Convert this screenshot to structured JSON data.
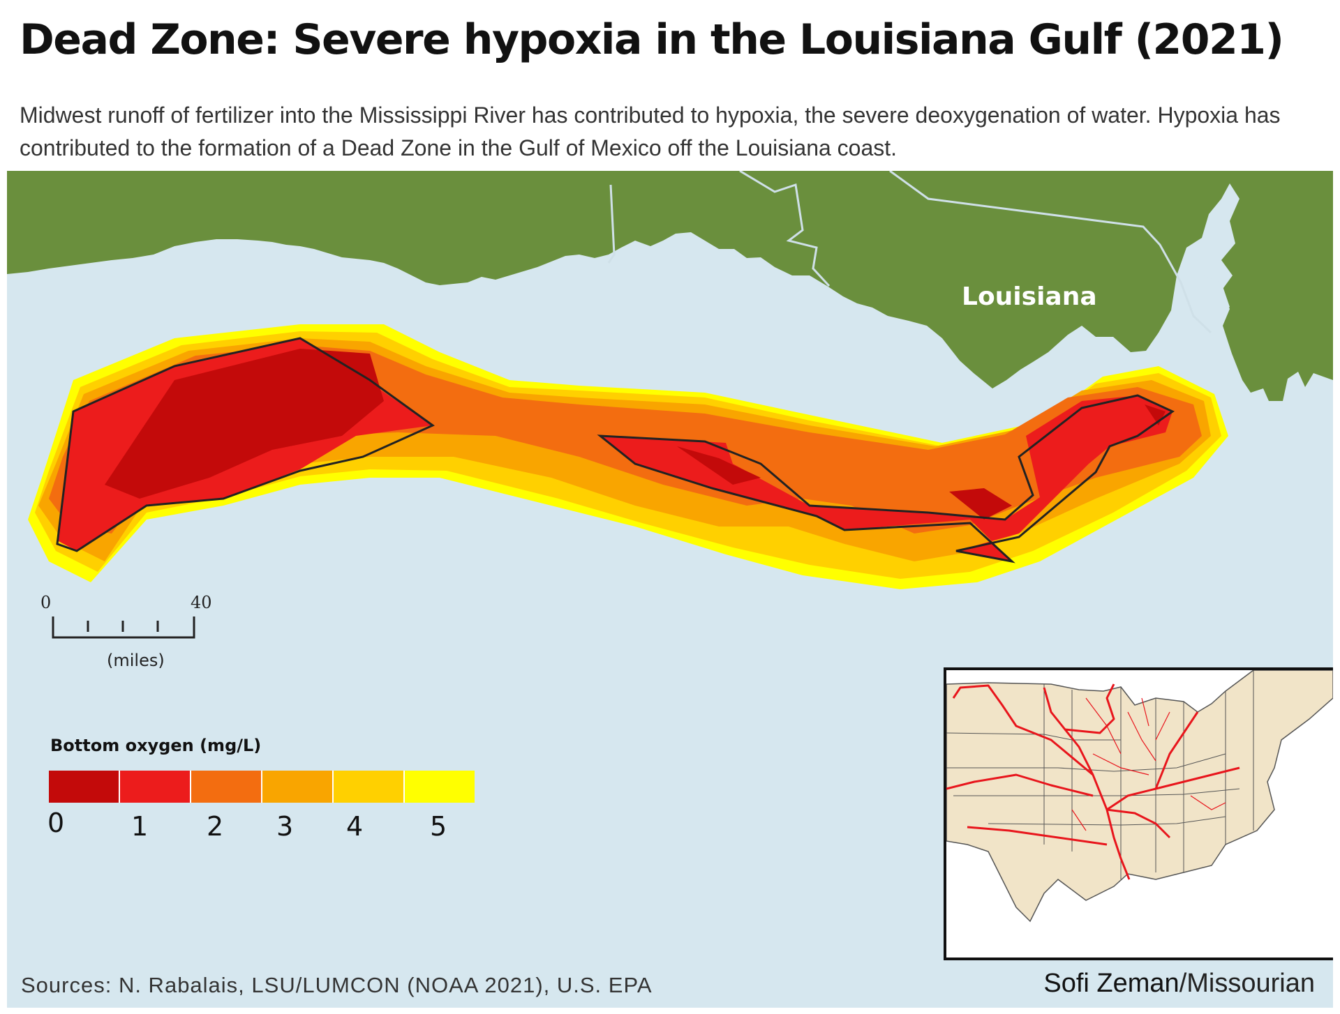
{
  "title": "Dead Zone: Severe hypoxia in the Louisiana Gulf (2021)",
  "subtitle": "Midwest runoff of fertilizer into the Mississippi River has contributed to hypoxia, the severe deoxygenation of water. Hypoxia has contributed to the formation of a Dead Zone in the Gulf of Mexico off the Louisiana coast.",
  "map": {
    "state_label": "Louisiana",
    "colors": {
      "water": "#d6e7ef",
      "land": "#6a8f3d",
      "inset_land": "#f1e4c8",
      "river": "#e8151c"
    }
  },
  "scale_bar": {
    "min_label": "0",
    "max_label": "40",
    "unit": "(miles)"
  },
  "legend": {
    "title": "Bottom oxygen (mg/L)",
    "labels": [
      "0",
      "1",
      "2",
      "3",
      "4",
      "5"
    ],
    "colors": [
      "#c30a0a",
      "#ec1c1c",
      "#f36d10",
      "#f9a500",
      "#ffd000",
      "#ffff00"
    ]
  },
  "footer": {
    "sources": "Sources: N. Rabalais, LSU/LUMCON (NOAA 2021), U.S. EPA",
    "author": "Sofi Zeman",
    "publication": "/Missourian"
  }
}
